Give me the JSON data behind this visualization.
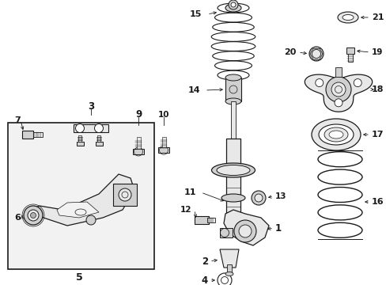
{
  "bg_color": "#ffffff",
  "fig_width": 4.89,
  "fig_height": 3.6,
  "dpi": 100,
  "lc": "#1a1a1a",
  "gray_fill": "#e8e8e8",
  "gray_mid": "#d0d0d0",
  "gray_dark": "#b0b0b0"
}
